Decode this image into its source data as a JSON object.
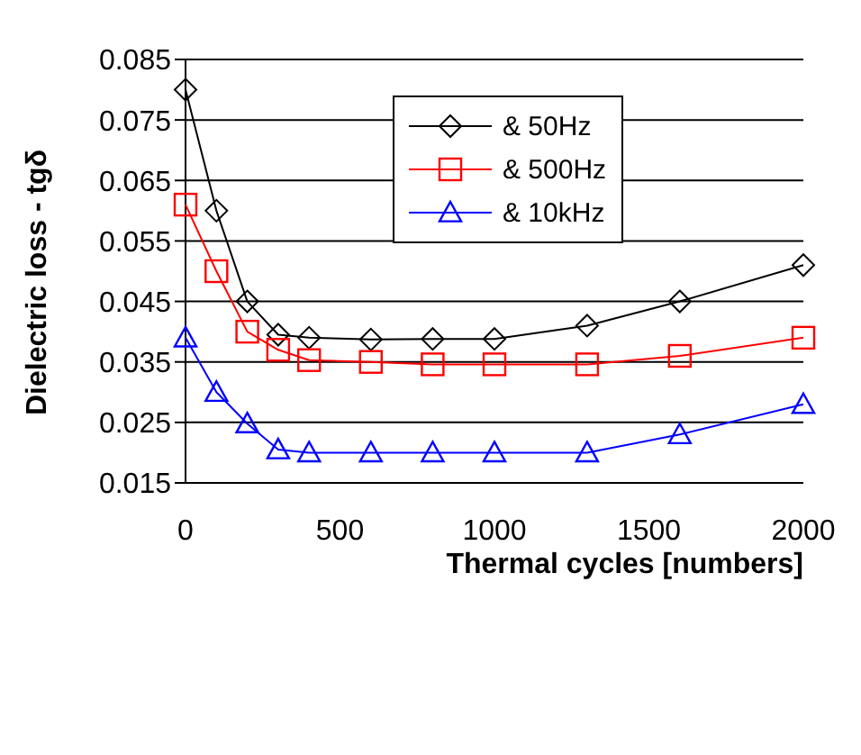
{
  "chart_data": {
    "type": "line",
    "xlabel": "Thermal cycles [numbers]",
    "ylabel": "Dielectric loss - tgδ",
    "x": [
      0,
      100,
      200,
      300,
      400,
      600,
      800,
      1000,
      1300,
      1600,
      2000
    ],
    "series": [
      {
        "name": "& 50Hz",
        "color": "#000000",
        "marker": "diamond",
        "values": [
          0.08,
          0.06,
          0.045,
          0.0395,
          0.039,
          0.0387,
          0.0388,
          0.0388,
          0.041,
          0.045,
          0.051
        ]
      },
      {
        "name": "& 500Hz",
        "color": "#ff0000",
        "marker": "square",
        "values": [
          0.061,
          0.05,
          0.04,
          0.037,
          0.0353,
          0.035,
          0.0346,
          0.0346,
          0.0346,
          0.036,
          0.039
        ]
      },
      {
        "name": "& 10kHz",
        "color": "#0000ff",
        "marker": "triangle",
        "values": [
          0.039,
          0.03,
          0.0248,
          0.0205,
          0.02,
          0.02,
          0.02,
          0.02,
          0.02,
          0.023,
          0.028
        ]
      }
    ],
    "xlim": [
      0,
      2000
    ],
    "xticks": [
      0,
      500,
      1000,
      1500,
      2000
    ],
    "ylim": [
      0.015,
      0.085
    ],
    "yticks": [
      0.015,
      0.025,
      0.035,
      0.045,
      0.055,
      0.065,
      0.075,
      0.085
    ],
    "grid": "y",
    "legend": "top",
    "line_style": "solid"
  }
}
